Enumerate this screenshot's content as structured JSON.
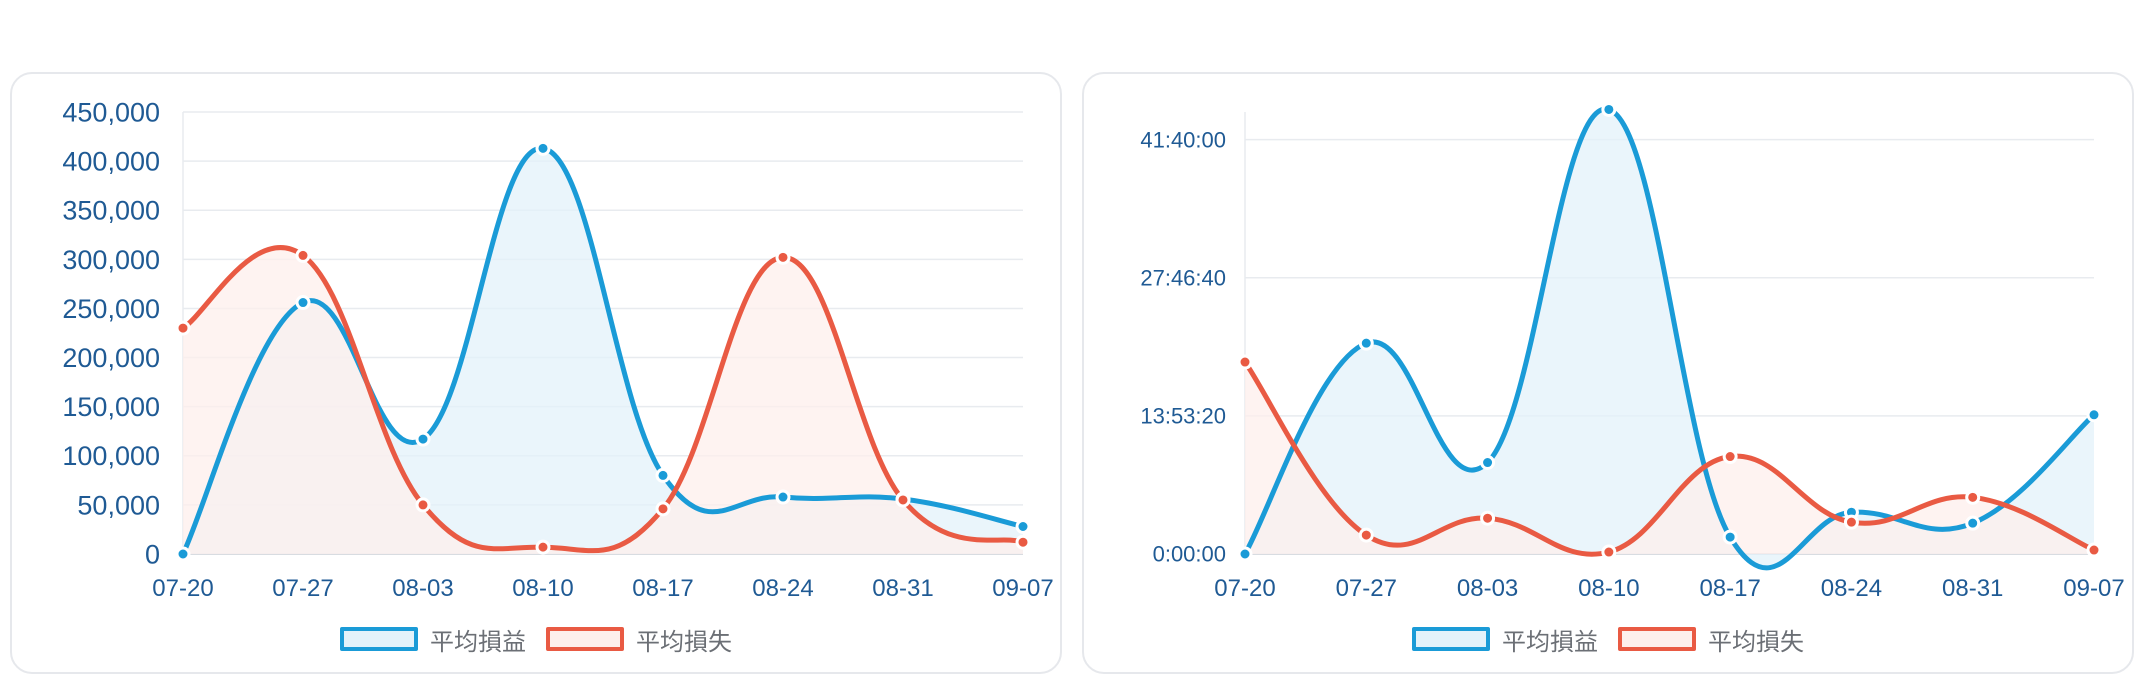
{
  "colors": {
    "profit": "#1a9bd7",
    "profit_fill": "#e3f2fa",
    "loss": "#e95a43",
    "loss_fill": "#fdefec",
    "grid": "#e8ebef",
    "axis_text": "#1f5a94"
  },
  "chart_data": [
    {
      "type": "area",
      "categories": [
        "07-20",
        "07-27",
        "08-03",
        "08-10",
        "08-17",
        "08-24",
        "08-31",
        "09-07"
      ],
      "series": [
        {
          "name": "平均損益",
          "values": [
            0,
            256000,
            117000,
            413000,
            80000,
            58000,
            56000,
            28000
          ]
        },
        {
          "name": "平均損失",
          "values": [
            230000,
            304000,
            50000,
            7000,
            46000,
            302000,
            55000,
            12000
          ]
        }
      ],
      "ylim": [
        0,
        450000
      ],
      "yticks": [
        "0",
        "50,000",
        "100,000",
        "150,000",
        "200,000",
        "250,000",
        "300,000",
        "350,000",
        "400,000",
        "450,000"
      ],
      "grid": true,
      "legend": "bottom"
    },
    {
      "type": "area",
      "categories": [
        "07-20",
        "07-27",
        "08-03",
        "08-10",
        "08-17",
        "08-24",
        "08-31",
        "09-07"
      ],
      "series": [
        {
          "name": "平均損益",
          "values": [
            0,
            21.2,
            9.2,
            44.7,
            1.7,
            4.2,
            3.1,
            14.0
          ]
        },
        {
          "name": "平均損失",
          "values": [
            19.3,
            1.9,
            3.6,
            0.2,
            9.8,
            3.2,
            5.7,
            0.4
          ]
        }
      ],
      "ylim": [
        0,
        44.4444
      ],
      "yticks": [
        "0:00:00",
        "13:53:20",
        "27:46:40",
        "41:40:00"
      ],
      "ytick_values": [
        0,
        13.8889,
        27.7778,
        41.6667
      ],
      "grid": true,
      "legend": "bottom"
    }
  ]
}
